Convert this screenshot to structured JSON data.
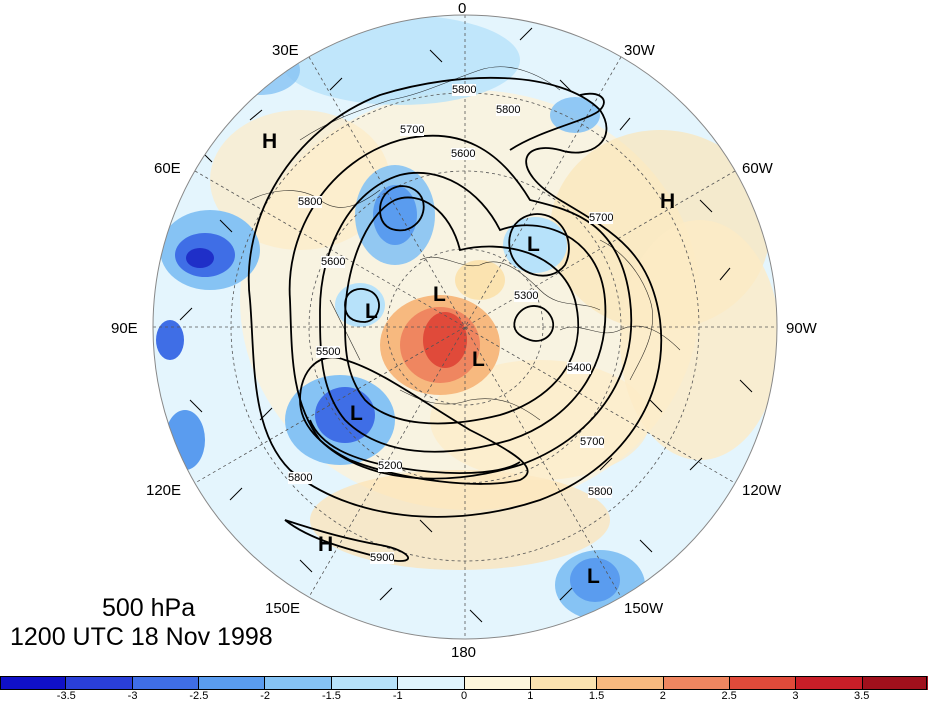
{
  "title": {
    "level": "500 hPa",
    "time": "1200 UTC 18 Nov 1998"
  },
  "longitude_labels": [
    "0",
    "30W",
    "60W",
    "90W",
    "120W",
    "150W",
    "180",
    "150E",
    "120E",
    "90E",
    "60E",
    "30E"
  ],
  "pressure_centers": [
    "H",
    "H",
    "H",
    "L",
    "L",
    "L",
    "L",
    "L",
    "L"
  ],
  "contour_labels": [
    "5800",
    "5800",
    "5700",
    "5600",
    "5800",
    "5700",
    "5600",
    "5500",
    "5400",
    "5300",
    "5200",
    "5800",
    "5700",
    "5800",
    "5900"
  ],
  "colorbar": {
    "ticks": [
      "-3.5",
      "-3",
      "-2.5",
      "-2",
      "-1.5",
      "-1",
      "0",
      "1",
      "1.5",
      "2",
      "2.5",
      "3",
      "3.5"
    ],
    "colors": [
      "#1010c8",
      "#2a3fd8",
      "#3f6ee6",
      "#5a9cef",
      "#86c3f4",
      "#b7e2fa",
      "#e0f4fd",
      "#fdf6dc",
      "#fbe3b0",
      "#f7b97f",
      "#ef8660",
      "#e04a3a",
      "#c81e28",
      "#a0101c"
    ]
  }
}
